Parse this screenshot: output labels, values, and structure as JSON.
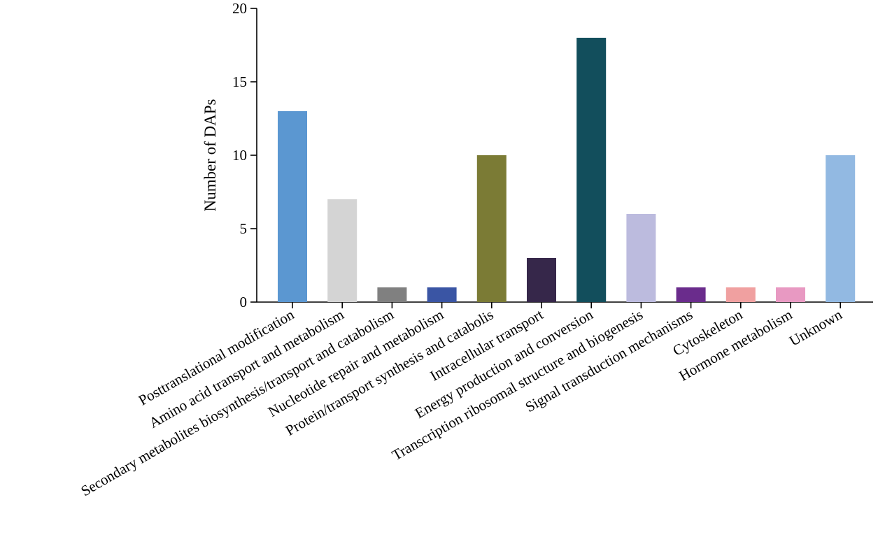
{
  "chart_data": {
    "type": "bar",
    "title": "",
    "xlabel": "",
    "ylabel": "Number of DAPs",
    "ylim": [
      0,
      20
    ],
    "yticks": [
      "0",
      "5",
      "10",
      "15",
      "20"
    ],
    "grid": false,
    "categories": [
      "Posttranslational modification",
      "Amino acid transport and metabolism",
      "Secondary metabolites biosynthesis/transport and catabolism",
      "Nucleotide repair and metabolism",
      "Protein/transport synthesis and catabolis",
      "Intracellular transport",
      "Energy production and conversion",
      "Transcription ribosomal structure and biogenesis",
      "Signal transduction mechanisms",
      "Cytoskeleton",
      "Hormone metabolism",
      "Unknown"
    ],
    "values": [
      13,
      7,
      1,
      1,
      10,
      3,
      18,
      6,
      1,
      1,
      1,
      10
    ],
    "colors": [
      "#5b97d1",
      "#d4d4d4",
      "#808080",
      "#3a55a4",
      "#7b7b35",
      "#36274a",
      "#124e5c",
      "#bcbbde",
      "#6a2c8c",
      "#f0a0a0",
      "#e899c2",
      "#92b9e2"
    ]
  }
}
